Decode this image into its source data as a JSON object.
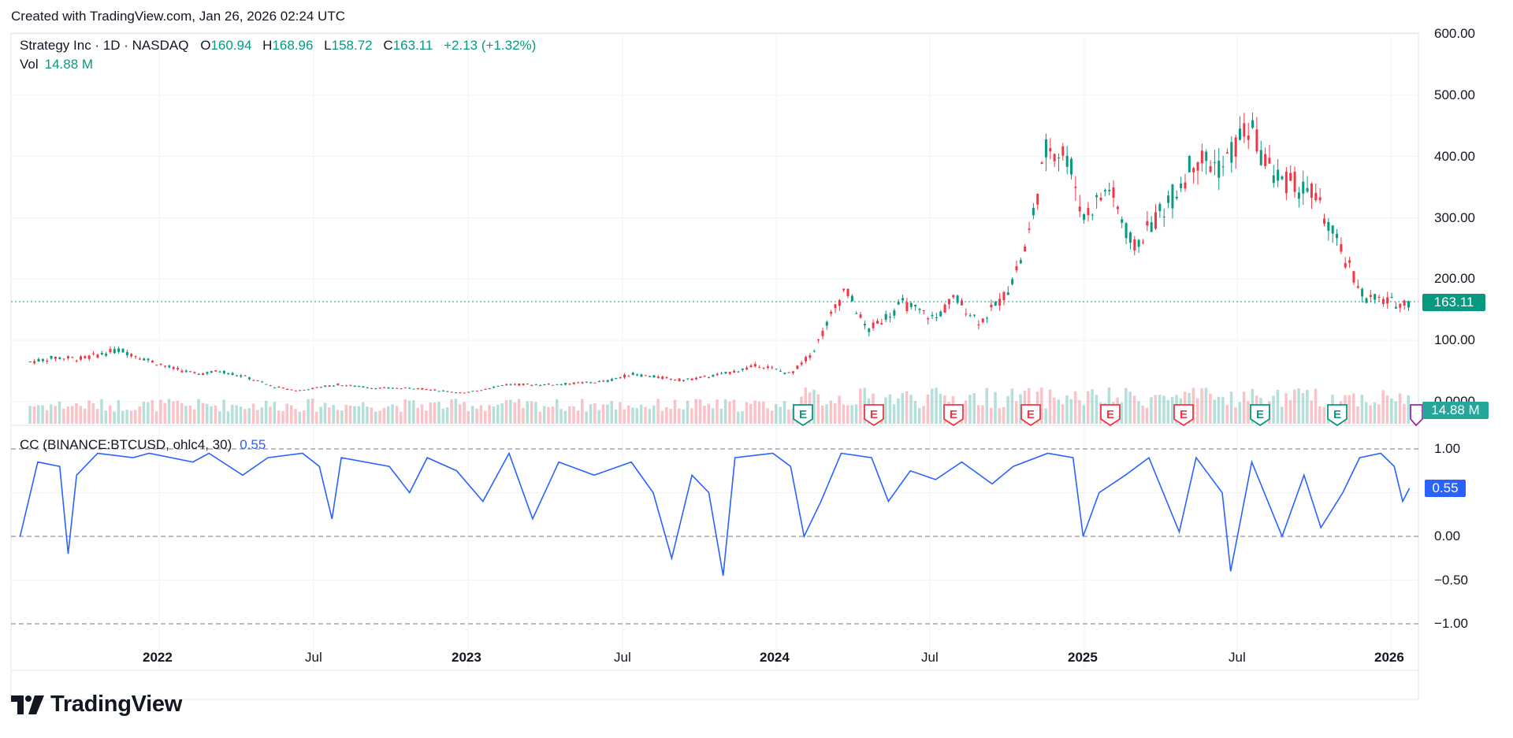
{
  "header": {
    "created_text": "Created with TradingView.com, Jan 26, 2026 02:24 UTC"
  },
  "legend": {
    "symbol": "Strategy Inc · 1D · NASDAQ",
    "open_label": "O",
    "open": "160.94",
    "high_label": "H",
    "high": "168.96",
    "low_label": "L",
    "low": "158.72",
    "close_label": "C",
    "close": "163.11",
    "change": "+2.13 (+1.32%)",
    "vol_label": "Vol",
    "vol": "14.88 M"
  },
  "indicator": {
    "label": "CC (BINANCE:BTCUSD, ohlc4, 30)",
    "value": "0.55"
  },
  "price_tags": {
    "last_price": "163.11",
    "last_volume": "14.88 M",
    "last_cc": "0.55"
  },
  "brand": {
    "name": "TradingView"
  },
  "colors": {
    "up": "#089981",
    "down": "#f23645",
    "indicator": "#2962ff",
    "grid": "#f0f3fa"
  },
  "chart_data": [
    {
      "type": "candlestick",
      "title": "Strategy Inc · 1D · NASDAQ",
      "y_ticks": [
        "600.00",
        "500.00",
        "400.00",
        "300.00",
        "200.00",
        "100.00",
        "0.0000"
      ],
      "ylim": [
        0,
        600
      ],
      "x_ticks": [
        "2022",
        "Jul",
        "2023",
        "Jul",
        "2024",
        "Jul",
        "2025",
        "Jul",
        "2026"
      ],
      "x_tick_dates": [
        "2022-01-01",
        "2022-07-01",
        "2023-01-01",
        "2023-07-01",
        "2024-01-01",
        "2024-07-01",
        "2025-01-01",
        "2025-07-01",
        "2026-01-01"
      ],
      "close_series_approx": [
        [
          "2021-08-01",
          65
        ],
        [
          "2021-09-01",
          72
        ],
        [
          "2021-10-01",
          70
        ],
        [
          "2021-11-15",
          85
        ],
        [
          "2021-12-15",
          70
        ],
        [
          "2022-01-15",
          55
        ],
        [
          "2022-02-15",
          45
        ],
        [
          "2022-03-15",
          50
        ],
        [
          "2022-04-15",
          40
        ],
        [
          "2022-05-15",
          25
        ],
        [
          "2022-06-15",
          18
        ],
        [
          "2022-08-01",
          28
        ],
        [
          "2022-09-15",
          22
        ],
        [
          "2022-11-01",
          22
        ],
        [
          "2022-12-30",
          14
        ],
        [
          "2023-02-15",
          28
        ],
        [
          "2023-04-15",
          28
        ],
        [
          "2023-06-15",
          33
        ],
        [
          "2023-07-15",
          45
        ],
        [
          "2023-09-15",
          35
        ],
        [
          "2023-11-01",
          45
        ],
        [
          "2023-12-15",
          60
        ],
        [
          "2024-01-20",
          45
        ],
        [
          "2024-02-15",
          80
        ],
        [
          "2024-03-25",
          185
        ],
        [
          "2024-04-20",
          115
        ],
        [
          "2024-06-01",
          160
        ],
        [
          "2024-07-10",
          135
        ],
        [
          "2024-08-01",
          170
        ],
        [
          "2024-09-01",
          130
        ],
        [
          "2024-10-01",
          175
        ],
        [
          "2024-10-25",
          250
        ],
        [
          "2024-11-20",
          420
        ],
        [
          "2024-12-15",
          400
        ],
        [
          "2025-01-01",
          300
        ],
        [
          "2025-02-01",
          350
        ],
        [
          "2025-03-01",
          250
        ],
        [
          "2025-04-15",
          330
        ],
        [
          "2025-05-15",
          400
        ],
        [
          "2025-06-15",
          380
        ],
        [
          "2025-07-15",
          450
        ],
        [
          "2025-08-15",
          370
        ],
        [
          "2025-10-01",
          340
        ],
        [
          "2025-11-01",
          250
        ],
        [
          "2025-12-01",
          170
        ],
        [
          "2026-01-10",
          160
        ],
        [
          "2026-01-23",
          163.11
        ]
      ],
      "earnings_markers": [
        "E",
        "E",
        "E",
        "E",
        "E",
        "E",
        "E",
        "E",
        "E"
      ]
    },
    {
      "type": "line",
      "title": "CC (BINANCE:BTCUSD, ohlc4, 30)",
      "y_ticks": [
        "1.00",
        "0.50",
        "0.00",
        "−0.50",
        "−1.00"
      ],
      "ylim": [
        -1,
        1
      ],
      "series": [
        {
          "name": "CC (BINANCE:BTCUSD, ohlc4, 30)",
          "points": [
            [
              "2021-07-20",
              0.0
            ],
            [
              "2021-08-10",
              0.85
            ],
            [
              "2021-09-05",
              0.8
            ],
            [
              "2021-09-15",
              -0.2
            ],
            [
              "2021-09-25",
              0.7
            ],
            [
              "2021-10-20",
              0.95
            ],
            [
              "2021-12-01",
              0.9
            ],
            [
              "2021-12-20",
              0.95
            ],
            [
              "2022-02-10",
              0.85
            ],
            [
              "2022-03-01",
              0.95
            ],
            [
              "2022-04-10",
              0.7
            ],
            [
              "2022-05-10",
              0.9
            ],
            [
              "2022-06-20",
              0.95
            ],
            [
              "2022-07-10",
              0.8
            ],
            [
              "2022-07-25",
              0.2
            ],
            [
              "2022-08-05",
              0.9
            ],
            [
              "2022-10-01",
              0.8
            ],
            [
              "2022-10-25",
              0.5
            ],
            [
              "2022-11-15",
              0.9
            ],
            [
              "2022-12-20",
              0.75
            ],
            [
              "2023-01-20",
              0.4
            ],
            [
              "2023-02-20",
              0.95
            ],
            [
              "2023-03-20",
              0.2
            ],
            [
              "2023-04-20",
              0.85
            ],
            [
              "2023-06-01",
              0.7
            ],
            [
              "2023-07-15",
              0.85
            ],
            [
              "2023-08-10",
              0.5
            ],
            [
              "2023-09-01",
              -0.25
            ],
            [
              "2023-09-25",
              0.7
            ],
            [
              "2023-10-15",
              0.5
            ],
            [
              "2023-11-01",
              -0.45
            ],
            [
              "2023-11-15",
              0.9
            ],
            [
              "2023-12-30",
              0.95
            ],
            [
              "2024-01-20",
              0.8
            ],
            [
              "2024-02-05",
              0.0
            ],
            [
              "2024-02-25",
              0.4
            ],
            [
              "2024-03-20",
              0.95
            ],
            [
              "2024-04-25",
              0.9
            ],
            [
              "2024-05-15",
              0.4
            ],
            [
              "2024-06-10",
              0.75
            ],
            [
              "2024-07-10",
              0.65
            ],
            [
              "2024-08-10",
              0.85
            ],
            [
              "2024-09-15",
              0.6
            ],
            [
              "2024-10-10",
              0.8
            ],
            [
              "2024-11-20",
              0.95
            ],
            [
              "2024-12-20",
              0.9
            ],
            [
              "2025-01-01",
              0.0
            ],
            [
              "2025-01-20",
              0.5
            ],
            [
              "2025-02-20",
              0.7
            ],
            [
              "2025-03-20",
              0.9
            ],
            [
              "2025-04-25",
              0.05
            ],
            [
              "2025-05-15",
              0.9
            ],
            [
              "2025-06-15",
              0.5
            ],
            [
              "2025-06-25",
              -0.4
            ],
            [
              "2025-07-20",
              0.85
            ],
            [
              "2025-08-25",
              0.0
            ],
            [
              "2025-09-20",
              0.7
            ],
            [
              "2025-10-10",
              0.1
            ],
            [
              "2025-11-05",
              0.5
            ],
            [
              "2025-11-25",
              0.9
            ],
            [
              "2025-12-20",
              0.95
            ],
            [
              "2026-01-05",
              0.8
            ],
            [
              "2026-01-15",
              0.4
            ],
            [
              "2026-01-23",
              0.55
            ]
          ]
        }
      ]
    }
  ]
}
